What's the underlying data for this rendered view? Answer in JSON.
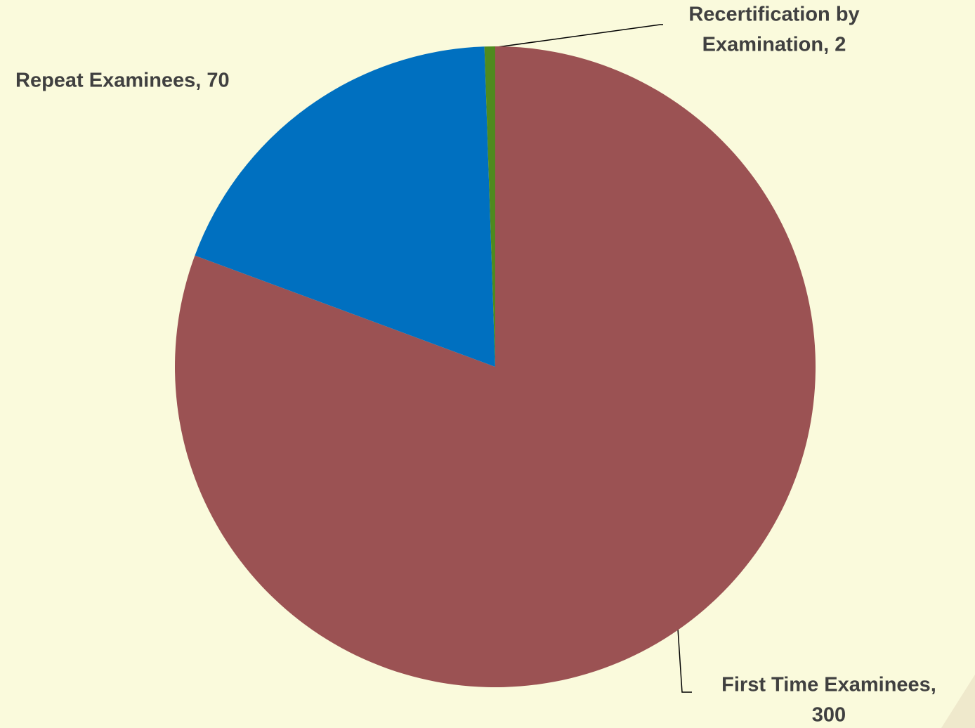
{
  "chart_data": {
    "type": "pie",
    "values": [
      300,
      70,
      2
    ],
    "colors": [
      "#9b5253",
      "#0070c0",
      "#4f8a1e"
    ],
    "labels": [
      [
        "First Time Examinees,",
        "300"
      ],
      [
        "Repeat Examinees, 70"
      ],
      [
        "Recertification by",
        "Examination, 2"
      ]
    ],
    "start_angle": 0,
    "direction": "clockwise"
  }
}
